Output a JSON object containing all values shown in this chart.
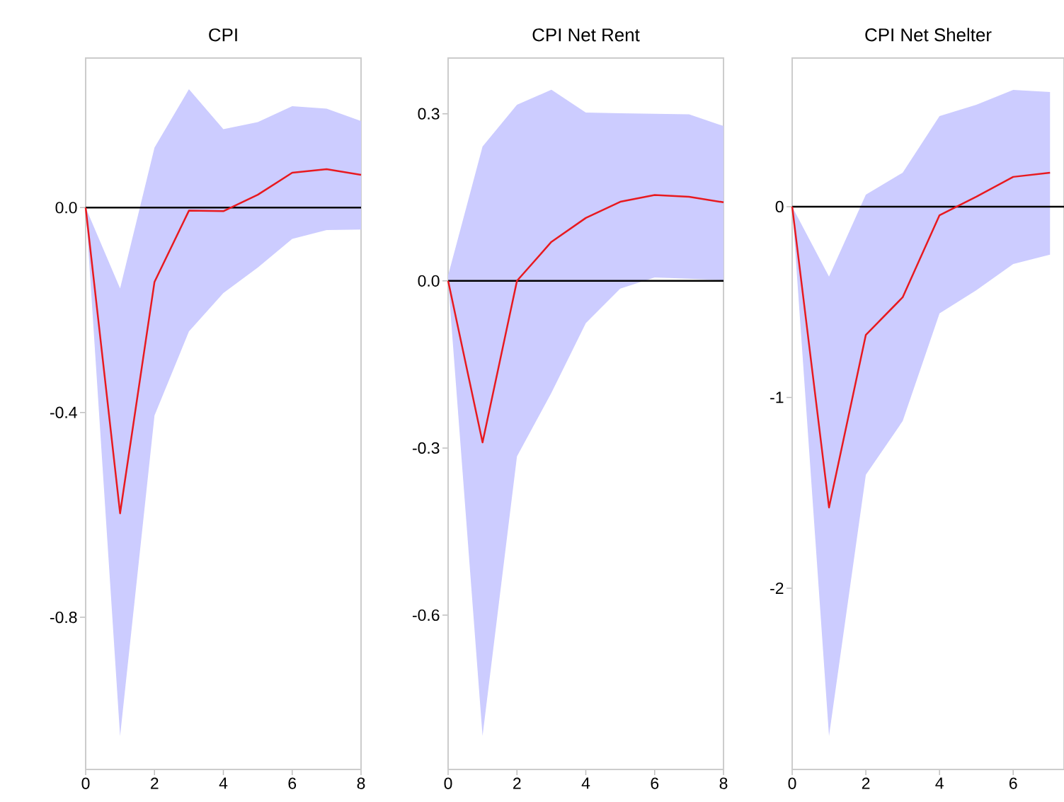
{
  "chart_data": [
    {
      "type": "line",
      "title": "CPI",
      "x": [
        0,
        1,
        2,
        3,
        4,
        5,
        6,
        7,
        8
      ],
      "series": [
        {
          "color": "#e8191f",
          "values": [
            0,
            -0.597,
            -0.145,
            -0.006,
            -0.007,
            0.025,
            0.068,
            0.075,
            0.064
          ],
          "lower": [
            0,
            -1.032,
            -0.406,
            -0.242,
            -0.167,
            -0.117,
            -0.061,
            -0.044,
            -0.043
          ],
          "upper": [
            0,
            -0.158,
            0.117,
            0.231,
            0.153,
            0.167,
            0.198,
            0.193,
            0.169
          ]
        }
      ],
      "xlim": [
        0,
        8
      ],
      "xticks": [
        0,
        2,
        4,
        6,
        8
      ],
      "ylim": [
        -1.097,
        0.292
      ],
      "yticks": [
        {
          "value": -0.8,
          "label": "-0.8"
        },
        {
          "value": -0.4,
          "label": "-0.4"
        },
        {
          "value": 0,
          "label": "0.0"
        }
      ],
      "ref_lines": [
        {
          "axis": "y",
          "value": 0,
          "color": "#000000"
        }
      ],
      "marker": "none",
      "line_style": "solid",
      "grid": false
    },
    {
      "type": "line",
      "title": "CPI Net Rent",
      "x": [
        0,
        1,
        2,
        3,
        4,
        5,
        6,
        7,
        8
      ],
      "series": [
        {
          "color": "#e8191f",
          "values": [
            0,
            -0.29,
            0,
            0.07,
            0.113,
            0.142,
            0.154,
            0.151,
            0.141
          ],
          "lower": [
            0,
            -0.817,
            -0.315,
            -0.201,
            -0.076,
            -0.014,
            0.006,
            0.004,
            0.001
          ],
          "upper": [
            0.01,
            0.241,
            0.316,
            0.343,
            0.302,
            0.301,
            0.3,
            0.299,
            0.278
          ]
        }
      ],
      "xlim": [
        0,
        8
      ],
      "xticks": [
        0,
        2,
        4,
        6,
        8
      ],
      "ylim": [
        -0.877,
        0.4
      ],
      "yticks": [
        {
          "value": -0.6,
          "label": "-0.6"
        },
        {
          "value": -0.3,
          "label": "-0.3"
        },
        {
          "value": 0,
          "label": "0.0"
        },
        {
          "value": 0.3,
          "label": "0.3"
        }
      ],
      "ref_lines": [
        {
          "axis": "y",
          "value": 0,
          "color": "#000000"
        }
      ],
      "marker": "none",
      "line_style": "solid",
      "grid": false
    },
    {
      "type": "line",
      "title": "CPI Net Shelter",
      "x": [
        0,
        1,
        2,
        3,
        4,
        5,
        6,
        7
      ],
      "series": [
        {
          "color": "#e8191f",
          "values": [
            0,
            -1.577,
            -0.672,
            -0.475,
            -0.045,
            0.052,
            0.156,
            0.178
          ],
          "lower": [
            0,
            -2.775,
            -1.406,
            -1.124,
            -0.56,
            -0.438,
            -0.301,
            -0.252
          ],
          "upper": [
            0,
            -0.367,
            0.063,
            0.178,
            0.475,
            0.534,
            0.612,
            0.601
          ]
        }
      ],
      "xlim": [
        0,
        7.38
      ],
      "xticks": [
        0,
        2,
        4,
        6
      ],
      "ylim": [
        -2.95,
        0.779
      ],
      "yticks": [
        -2,
        -1,
        0
      ],
      "ref_lines": [
        {
          "axis": "y",
          "value": 0,
          "color": "#000000"
        }
      ],
      "marker": "none",
      "line_style": "solid",
      "grid": false
    }
  ]
}
